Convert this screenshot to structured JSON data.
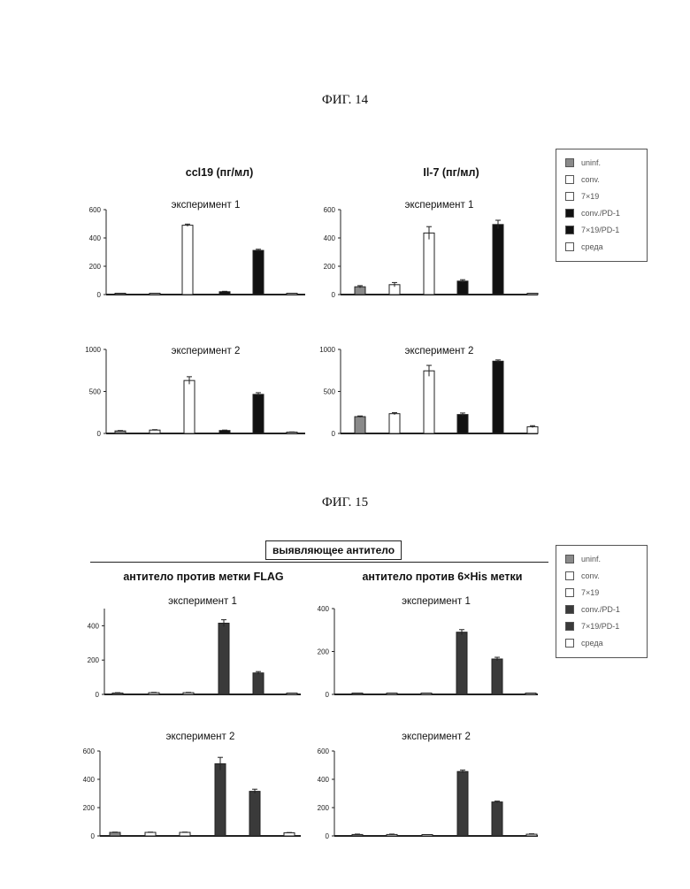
{
  "fig14": {
    "title": "ФИГ. 14",
    "col_left": "ccl19 (пг/мл)",
    "col_right": "Il-7 (пг/мл)"
  },
  "fig15": {
    "title": "ФИГ. 15",
    "detecting_box": "выявляющее антитело",
    "col_left": "антитело против метки FLAG",
    "col_right": "антитело против 6×His метки"
  },
  "legend_fig14": [
    "uninf.",
    "conv.",
    "7×19",
    "conv./PD-1",
    "7×19/PD-1",
    "среда"
  ],
  "legend_fig15": [
    "uninf.",
    "conv.",
    "7×19",
    "conv./PD-1",
    "7×19/PD-1",
    "среда"
  ],
  "colors": {
    "uninf": "#8a8a8a",
    "open": "#ffffff",
    "black": "#111111",
    "dark_gray": "#3a3a3a",
    "axis": "#222222"
  },
  "chart_data": [
    {
      "type": "bar",
      "figure": "ФИГ. 14",
      "title": "эксперимент 1",
      "categories": [
        "uninf.",
        "conv.",
        "7×19",
        "conv./PD-1",
        "7×19/PD-1",
        "среда"
      ],
      "values": [
        0,
        0,
        490,
        20,
        312,
        0
      ],
      "errors": [
        0,
        0,
        8,
        3,
        8,
        0
      ],
      "ylim": [
        0,
        600
      ],
      "yticks": [
        0,
        200,
        400,
        600
      ],
      "ytick_labels": [
        "0",
        "200",
        "400",
        "600"
      ]
    },
    {
      "type": "bar",
      "figure": "ФИГ. 14",
      "title": "эксперимент 1",
      "categories": [
        "uninf.",
        "conv.",
        "7×19",
        "conv./PD-1",
        "7×19/PD-1",
        "среда"
      ],
      "values": [
        55,
        70,
        435,
        95,
        495,
        5
      ],
      "errors": [
        8,
        15,
        45,
        10,
        30,
        0
      ],
      "ylim": [
        0,
        600
      ],
      "yticks": [
        0,
        200,
        400,
        600
      ],
      "ytick_labels": [
        "0",
        "200",
        "400",
        "600"
      ]
    },
    {
      "type": "bar",
      "figure": "ФИГ. 14",
      "title": "эксперимент 2",
      "categories": [
        "uninf.",
        "conv.",
        "7×19",
        "conv./PD-1",
        "7×19/PD-1",
        "среда"
      ],
      "values": [
        30,
        40,
        630,
        35,
        465,
        15
      ],
      "errors": [
        5,
        5,
        45,
        5,
        20,
        3
      ],
      "ylim": [
        0,
        1000
      ],
      "yticks": [
        0,
        500,
        1000
      ],
      "ytick_labels": [
        "0",
        "500",
        "1000"
      ]
    },
    {
      "type": "bar",
      "figure": "ФИГ. 14",
      "title": "эксперимент 2",
      "categories": [
        "uninf.",
        "conv.",
        "7×19",
        "conv./PD-1",
        "7×19/PD-1",
        "среда"
      ],
      "values": [
        200,
        235,
        745,
        225,
        860,
        80
      ],
      "errors": [
        8,
        12,
        65,
        18,
        15,
        12
      ],
      "ylim": [
        0,
        1000
      ],
      "yticks": [
        0,
        500,
        1000
      ],
      "ytick_labels": [
        "0",
        "500",
        "1000"
      ]
    },
    {
      "type": "bar",
      "figure": "ФИГ. 15",
      "title": "эксперимент 1",
      "categories": [
        "uninf.",
        "conv.",
        "7×19",
        "conv./PD-1",
        "7×19/PD-1",
        "среда"
      ],
      "values": [
        8,
        10,
        10,
        415,
        125,
        3
      ],
      "errors": [
        2,
        2,
        2,
        20,
        8,
        0
      ],
      "ylim": [
        0,
        500
      ],
      "yticks": [
        0,
        200,
        400
      ],
      "ytick_labels": [
        "0",
        "200",
        "400"
      ]
    },
    {
      "type": "bar",
      "figure": "ФИГ. 15",
      "title": "эксперимент 1",
      "categories": [
        "uninf.",
        "conv.",
        "7×19",
        "conv./PD-1",
        "7×19/PD-1",
        "среда"
      ],
      "values": [
        0,
        0,
        0,
        290,
        165,
        0
      ],
      "errors": [
        0,
        0,
        0,
        12,
        8,
        0
      ],
      "ylim": [
        0,
        400
      ],
      "yticks": [
        0,
        200,
        400
      ],
      "ytick_labels": [
        "0",
        "200",
        "400"
      ]
    },
    {
      "type": "bar",
      "figure": "ФИГ. 15",
      "title": "эксперимент 2",
      "categories": [
        "uninf.",
        "conv.",
        "7×19",
        "conv./PD-1",
        "7×19/PD-1",
        "среда"
      ],
      "values": [
        25,
        25,
        25,
        510,
        315,
        22
      ],
      "errors": [
        2,
        2,
        2,
        45,
        15,
        2
      ],
      "ylim": [
        0,
        600
      ],
      "yticks": [
        0,
        200,
        400,
        600
      ],
      "ytick_labels": [
        "0",
        "200",
        "400",
        "600"
      ]
    },
    {
      "type": "bar",
      "figure": "ФИГ. 15",
      "title": "эксперимент 2",
      "categories": [
        "uninf.",
        "conv.",
        "7×19",
        "conv./PD-1",
        "7×19/PD-1",
        "среда"
      ],
      "values": [
        10,
        10,
        5,
        455,
        240,
        12
      ],
      "errors": [
        3,
        3,
        0,
        10,
        6,
        3
      ],
      "ylim": [
        0,
        600
      ],
      "yticks": [
        0,
        200,
        400,
        600
      ],
      "ytick_labels": [
        "0",
        "200",
        "400",
        "600"
      ]
    }
  ]
}
